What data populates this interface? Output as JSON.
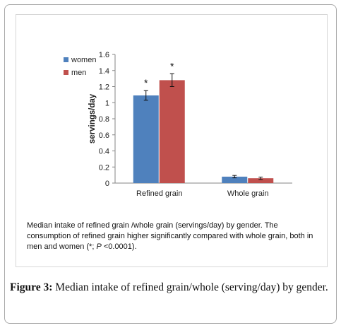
{
  "chart_data": {
    "type": "bar",
    "categories": [
      "Refined grain",
      "Whole grain"
    ],
    "series": [
      {
        "name": "women",
        "color": "#4f81bd",
        "values": [
          1.09,
          0.08
        ],
        "errors": [
          0.06,
          0.015
        ]
      },
      {
        "name": "men",
        "color": "#c0504d",
        "values": [
          1.28,
          0.06
        ],
        "errors": [
          0.08,
          0.015
        ]
      }
    ],
    "annotations": [
      "*",
      "*"
    ],
    "ylabel": "servings/day",
    "xlabel": "",
    "ylim": [
      0,
      1.6
    ],
    "yticks": [
      "0",
      "0.2",
      "0.4",
      "0.6",
      "0.8",
      "1",
      "1.2",
      "1.4",
      "1.6"
    ],
    "grid": false,
    "legend": "top-left"
  },
  "inner_caption": {
    "line1": "Median intake of refined grain /whole grain (servings/day) by gender.  The",
    "line2": "consumption of refined grain higher significantly compared with whole grain, both in",
    "line3_pre": "men and women (*; ",
    "line3_p": "P",
    "line3_post": " <0.0001)."
  },
  "figure_caption": {
    "label": "Figure 3:",
    "text": " Median intake of refined grain/whole (serving/day) by gender."
  }
}
